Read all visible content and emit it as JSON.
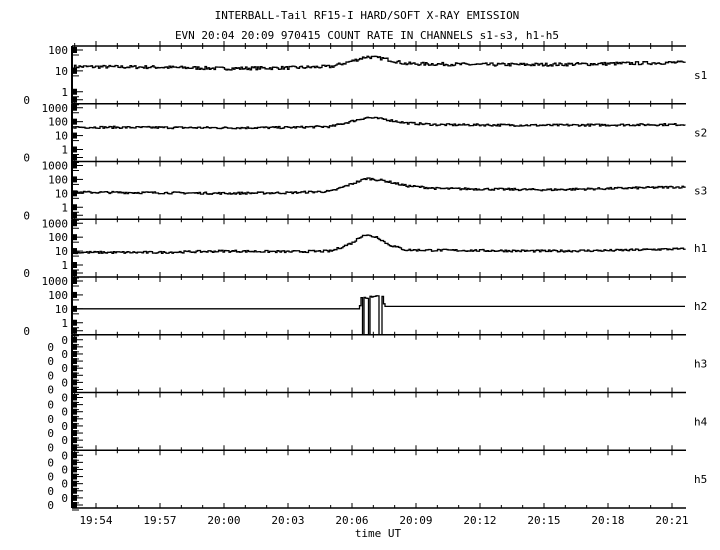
{
  "chart_data": {
    "type": "line",
    "title": "INTERBALL-Tail RF15-I HARD/SOFT X-RAY EMISSION",
    "subtitle": "EVN 20:04 20:09 970415  COUNT RATE IN CHANNELS s1-s3, h1-h5",
    "xlabel": "time UT",
    "x_ticks": [
      "19:54",
      "19:57",
      "20:00",
      "20:03",
      "20:06",
      "20:09",
      "20:12",
      "20:15",
      "20:18",
      "20:21"
    ],
    "xlim": [
      "19:52:53",
      "20:21:40"
    ],
    "yscale": "log",
    "series": [
      {
        "name": "s1",
        "y_ticks": [
          "100",
          "10",
          "1",
          "0"
        ],
        "ylim": [
          0,
          100
        ],
        "points": [
          [
            "19:53",
            16
          ],
          [
            "19:57",
            15
          ],
          [
            "20:00",
            13
          ],
          [
            "20:03",
            14
          ],
          [
            "20:05",
            16
          ],
          [
            "20:06",
            30
          ],
          [
            "20:06:40",
            48
          ],
          [
            "20:07:30",
            38
          ],
          [
            "20:08:30",
            22
          ],
          [
            "20:12",
            20
          ],
          [
            "20:15",
            20
          ],
          [
            "20:18",
            22
          ],
          [
            "20:21",
            25
          ]
        ]
      },
      {
        "name": "s2",
        "y_ticks": [
          "1000",
          "100",
          "10",
          "1",
          "0"
        ],
        "ylim": [
          0,
          1000
        ],
        "points": [
          [
            "19:53",
            40
          ],
          [
            "19:57",
            38
          ],
          [
            "20:00",
            36
          ],
          [
            "20:03",
            38
          ],
          [
            "20:05",
            45
          ],
          [
            "20:06",
            110
          ],
          [
            "20:06:40",
            200
          ],
          [
            "20:07:30",
            150
          ],
          [
            "20:08:30",
            80
          ],
          [
            "20:10",
            60
          ],
          [
            "20:15",
            55
          ],
          [
            "20:18",
            58
          ],
          [
            "20:21",
            62
          ]
        ]
      },
      {
        "name": "s3",
        "y_ticks": [
          "1000",
          "100",
          "10",
          "1",
          "0"
        ],
        "ylim": [
          0,
          1000
        ],
        "points": [
          [
            "19:53",
            12
          ],
          [
            "19:57",
            11
          ],
          [
            "20:00",
            10
          ],
          [
            "20:03",
            11
          ],
          [
            "20:05",
            14
          ],
          [
            "20:06",
            50
          ],
          [
            "20:06:40",
            120
          ],
          [
            "20:07:30",
            80
          ],
          [
            "20:08:30",
            35
          ],
          [
            "20:10",
            22
          ],
          [
            "20:15",
            18
          ],
          [
            "20:18",
            22
          ],
          [
            "20:21",
            28
          ]
        ]
      },
      {
        "name": "h1",
        "y_ticks": [
          "1000",
          "100",
          "10",
          "1",
          "0"
        ],
        "ylim": [
          0,
          1000
        ],
        "points": [
          [
            "19:53",
            8
          ],
          [
            "19:57",
            8
          ],
          [
            "20:00",
            10
          ],
          [
            "20:03",
            9
          ],
          [
            "20:05",
            10
          ],
          [
            "20:06",
            40
          ],
          [
            "20:06:30",
            150
          ],
          [
            "20:07:10",
            100
          ],
          [
            "20:07:40",
            30
          ],
          [
            "20:08:30",
            12
          ],
          [
            "20:15",
            10
          ],
          [
            "20:18",
            11
          ],
          [
            "20:21",
            14
          ]
        ]
      },
      {
        "name": "h2",
        "y_ticks": [
          "1000",
          "100",
          "10",
          "1",
          "0"
        ],
        "ylim": [
          0,
          1000
        ],
        "points": [
          [
            "19:53",
            10
          ],
          [
            "20:06:20",
            10
          ],
          [
            "20:06:25",
            70
          ],
          [
            "20:07:25",
            70
          ],
          [
            "20:07:30",
            15
          ],
          [
            "20:21",
            15
          ]
        ]
      },
      {
        "name": "h3",
        "y_ticks": [
          "0",
          "0",
          "0",
          "0",
          "0",
          "0",
          "0",
          "0"
        ],
        "points": []
      },
      {
        "name": "h4",
        "y_ticks": [
          "0",
          "0",
          "0",
          "0",
          "0",
          "0",
          "0",
          "0"
        ],
        "points": []
      },
      {
        "name": "h5",
        "y_ticks": [
          "0",
          "0",
          "0",
          "0",
          "0",
          "0",
          "0",
          "0"
        ],
        "points": []
      }
    ]
  }
}
